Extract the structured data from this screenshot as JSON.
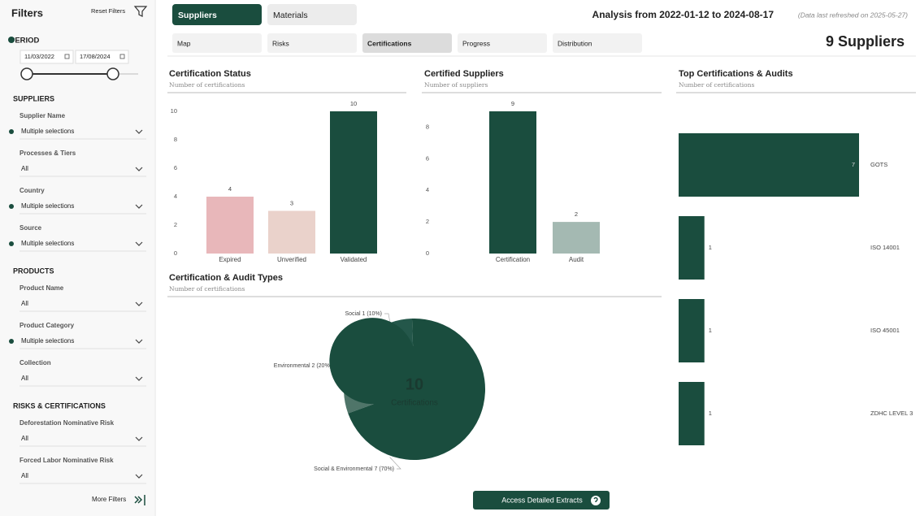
{
  "sidebar": {
    "title": "Filters",
    "reset": "Reset Filters",
    "period": "PERIOD",
    "date_from": "11/03/2022",
    "date_to": "17/08/2024",
    "sections": [
      {
        "title": "SUPPLIERS",
        "filters": [
          {
            "label": "Supplier Name",
            "value": "Multiple selections",
            "selected": true
          },
          {
            "label": "Processes & Tiers",
            "value": "All",
            "selected": false
          },
          {
            "label": "Country",
            "value": "Multiple selections",
            "selected": true
          },
          {
            "label": "Source",
            "value": "Multiple selections",
            "selected": true
          }
        ]
      },
      {
        "title": "PRODUCTS",
        "filters": [
          {
            "label": "Product Name",
            "value": "All",
            "selected": false
          },
          {
            "label": "Product Category",
            "value": "Multiple selections",
            "selected": true
          },
          {
            "label": "Collection",
            "value": "All",
            "selected": false
          }
        ]
      },
      {
        "title": "RISKS & CERTIFICATIONS",
        "filters": [
          {
            "label": "Deforestation Nominative Risk",
            "value": "All",
            "selected": false
          },
          {
            "label": "Forced Labor Nominative Risk",
            "value": "All",
            "selected": false
          }
        ]
      }
    ],
    "more": "More Filters"
  },
  "tabs": {
    "items": [
      "Suppliers",
      "Materials"
    ],
    "active": 0
  },
  "subtabs": {
    "items": [
      "Map",
      "Risks",
      "Certifications",
      "Progress",
      "Distribution"
    ],
    "active": 2
  },
  "header": {
    "analysis": "Analysis from 2022-01-12 to 2024-08-17",
    "refreshed": "(Data last refreshed on 2025-05-27)",
    "count": "9 Suppliers"
  },
  "button": "Access Detailed Extracts",
  "chart_data": [
    {
      "type": "bar",
      "title": "Certification Status",
      "subtitle": "Number of certifications",
      "categories": [
        "Expired",
        "Unverified",
        "Validated"
      ],
      "values": [
        4,
        3,
        10
      ],
      "colors": [
        "#e8b7ba",
        "#ead2cb",
        "#1a4d3e"
      ],
      "ylim": [
        0,
        10
      ],
      "yticks": [
        0,
        2,
        4,
        6,
        8,
        10
      ]
    },
    {
      "type": "bar",
      "title": "Certified Suppliers",
      "subtitle": "Number of suppliers",
      "categories": [
        "Certification",
        "Audit"
      ],
      "values": [
        9,
        2
      ],
      "colors": [
        "#1a4d3e",
        "#a4b9b2"
      ],
      "ylim": [
        0,
        9
      ],
      "yticks": [
        0,
        2,
        4,
        6,
        8
      ]
    },
    {
      "type": "hbar",
      "title": "Top Certifications & Audits",
      "subtitle": "Number of certifications",
      "categories": [
        "GOTS",
        "ISO 14001",
        "ISO 45001",
        "ZDHC LEVEL 3"
      ],
      "values": [
        7,
        1,
        1,
        1
      ],
      "color": "#1a4d3e",
      "xlim": [
        0,
        7
      ]
    },
    {
      "type": "donut",
      "title": "Certification & Audit Types",
      "subtitle": "Number of certifications",
      "categories": [
        "Social",
        "Environmental",
        "Social & Environmental"
      ],
      "values": [
        1,
        2,
        7
      ],
      "value_labels": [
        "1 (10%)",
        "2 (20%)",
        "7 (70%)"
      ],
      "colors": [
        "#24574a",
        "#4f7569",
        "#1a4d3e"
      ],
      "total": 10,
      "center_label": "Certifications"
    }
  ]
}
